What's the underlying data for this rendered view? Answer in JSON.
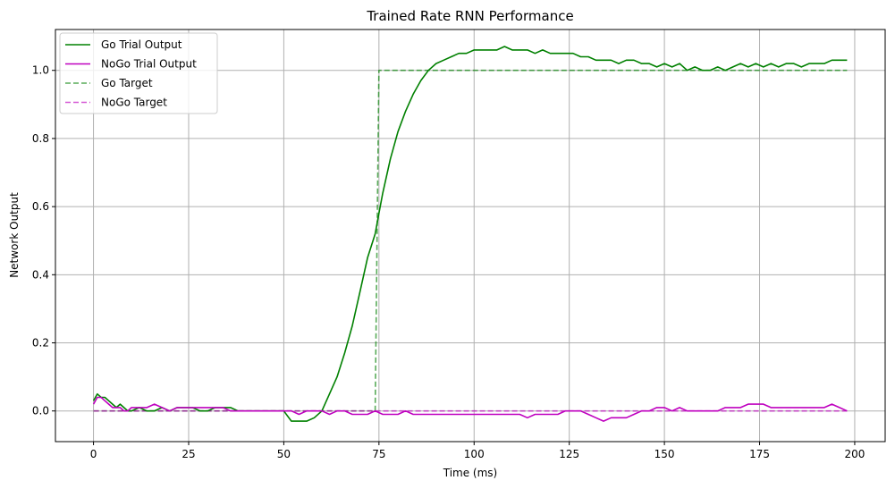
{
  "chart_data": {
    "type": "line",
    "title": "Trained Rate RNN Performance",
    "xlabel": "Time (ms)",
    "ylabel": "Network Output",
    "xlim": [
      -10,
      208
    ],
    "ylim": [
      -0.09,
      1.12
    ],
    "x_ticks": [
      0,
      25,
      50,
      75,
      100,
      125,
      150,
      175,
      200
    ],
    "y_ticks": [
      0.0,
      0.2,
      0.4,
      0.6,
      0.8,
      1.0
    ],
    "x_tick_labels": [
      "0",
      "25",
      "50",
      "75",
      "100",
      "125",
      "150",
      "175",
      "200"
    ],
    "y_tick_labels": [
      "0.0",
      "0.2",
      "0.4",
      "0.6",
      "0.8",
      "1.0"
    ],
    "grid": true,
    "legend_position": "top-left",
    "series": [
      {
        "name": "Go Trial Output",
        "color": "#008000",
        "style": "solid",
        "x": [
          0,
          1,
          2,
          3,
          4,
          5,
          6,
          7,
          8,
          9,
          10,
          12,
          14,
          16,
          18,
          20,
          22,
          24,
          26,
          28,
          30,
          32,
          34,
          36,
          38,
          40,
          42,
          44,
          46,
          48,
          50,
          52,
          54,
          56,
          58,
          60,
          62,
          64,
          66,
          68,
          70,
          72,
          74,
          75,
          76,
          78,
          80,
          82,
          84,
          86,
          88,
          90,
          92,
          94,
          96,
          98,
          100,
          102,
          104,
          106,
          108,
          110,
          112,
          114,
          116,
          118,
          120,
          122,
          124,
          126,
          128,
          130,
          132,
          134,
          136,
          138,
          140,
          142,
          144,
          146,
          148,
          150,
          152,
          154,
          156,
          158,
          160,
          162,
          164,
          166,
          168,
          170,
          172,
          174,
          176,
          178,
          180,
          182,
          184,
          186,
          188,
          190,
          192,
          194,
          196,
          198
        ],
        "y": [
          0.03,
          0.05,
          0.04,
          0.04,
          0.03,
          0.02,
          0.01,
          0.02,
          0.01,
          0.0,
          0.0,
          0.01,
          0.0,
          0.0,
          0.01,
          0.0,
          0.01,
          0.01,
          0.01,
          0.0,
          0.0,
          0.01,
          0.01,
          0.01,
          0.0,
          0.0,
          0.0,
          0.0,
          0.0,
          0.0,
          0.0,
          -0.03,
          -0.03,
          -0.03,
          -0.02,
          0.0,
          0.05,
          0.1,
          0.17,
          0.25,
          0.35,
          0.45,
          0.52,
          0.58,
          0.64,
          0.74,
          0.82,
          0.88,
          0.93,
          0.97,
          1.0,
          1.02,
          1.03,
          1.04,
          1.05,
          1.05,
          1.06,
          1.06,
          1.06,
          1.06,
          1.07,
          1.06,
          1.06,
          1.06,
          1.05,
          1.06,
          1.05,
          1.05,
          1.05,
          1.05,
          1.04,
          1.04,
          1.03,
          1.03,
          1.03,
          1.02,
          1.03,
          1.03,
          1.02,
          1.02,
          1.01,
          1.02,
          1.01,
          1.02,
          1.0,
          1.01,
          1.0,
          1.0,
          1.01,
          1.0,
          1.01,
          1.02,
          1.01,
          1.02,
          1.01,
          1.02,
          1.01,
          1.02,
          1.02,
          1.01,
          1.02,
          1.02,
          1.02,
          1.03,
          1.03,
          1.03
        ]
      },
      {
        "name": "NoGo Trial Output",
        "color": "#bf00bf",
        "style": "solid",
        "x": [
          0,
          1,
          2,
          3,
          4,
          5,
          6,
          7,
          8,
          9,
          10,
          12,
          14,
          16,
          18,
          20,
          22,
          24,
          26,
          28,
          30,
          32,
          34,
          36,
          38,
          40,
          42,
          44,
          46,
          48,
          50,
          52,
          54,
          56,
          58,
          60,
          62,
          64,
          66,
          68,
          70,
          72,
          74,
          76,
          78,
          80,
          82,
          84,
          86,
          88,
          90,
          92,
          94,
          96,
          98,
          100,
          102,
          104,
          106,
          108,
          110,
          112,
          114,
          116,
          118,
          120,
          122,
          124,
          126,
          128,
          130,
          132,
          134,
          136,
          138,
          140,
          142,
          144,
          146,
          148,
          150,
          152,
          154,
          156,
          158,
          160,
          162,
          164,
          166,
          168,
          170,
          172,
          174,
          176,
          178,
          180,
          182,
          184,
          186,
          188,
          190,
          192,
          194,
          196,
          198
        ],
        "y": [
          0.02,
          0.04,
          0.04,
          0.03,
          0.02,
          0.01,
          0.01,
          0.01,
          0.0,
          0.0,
          0.01,
          0.01,
          0.01,
          0.02,
          0.01,
          0.0,
          0.01,
          0.01,
          0.01,
          0.01,
          0.01,
          0.01,
          0.01,
          0.0,
          0.0,
          0.0,
          0.0,
          0.0,
          0.0,
          0.0,
          0.0,
          0.0,
          -0.01,
          0.0,
          0.0,
          0.0,
          -0.01,
          0.0,
          0.0,
          -0.01,
          -0.01,
          -0.01,
          0.0,
          -0.01,
          -0.01,
          -0.01,
          0.0,
          -0.01,
          -0.01,
          -0.01,
          -0.01,
          -0.01,
          -0.01,
          -0.01,
          -0.01,
          -0.01,
          -0.01,
          -0.01,
          -0.01,
          -0.01,
          -0.01,
          -0.01,
          -0.02,
          -0.01,
          -0.01,
          -0.01,
          -0.01,
          0.0,
          0.0,
          0.0,
          -0.01,
          -0.02,
          -0.03,
          -0.02,
          -0.02,
          -0.02,
          -0.01,
          0.0,
          0.0,
          0.01,
          0.01,
          0.0,
          0.01,
          0.0,
          0.0,
          0.0,
          0.0,
          0.0,
          0.01,
          0.01,
          0.01,
          0.02,
          0.02,
          0.02,
          0.01,
          0.01,
          0.01,
          0.01,
          0.01,
          0.01,
          0.01,
          0.01,
          0.02,
          0.01,
          0.0
        ]
      },
      {
        "name": "Go Target",
        "color": "#008000",
        "style": "dashed",
        "x": [
          0,
          74,
          74,
          75,
          75,
          198
        ],
        "y": [
          0.0,
          0.0,
          0.0,
          1.0,
          1.0,
          1.0
        ]
      },
      {
        "name": "NoGo Target",
        "color": "#bf00bf",
        "style": "dashed",
        "x": [
          0,
          198
        ],
        "y": [
          0.0,
          0.0
        ]
      }
    ]
  }
}
